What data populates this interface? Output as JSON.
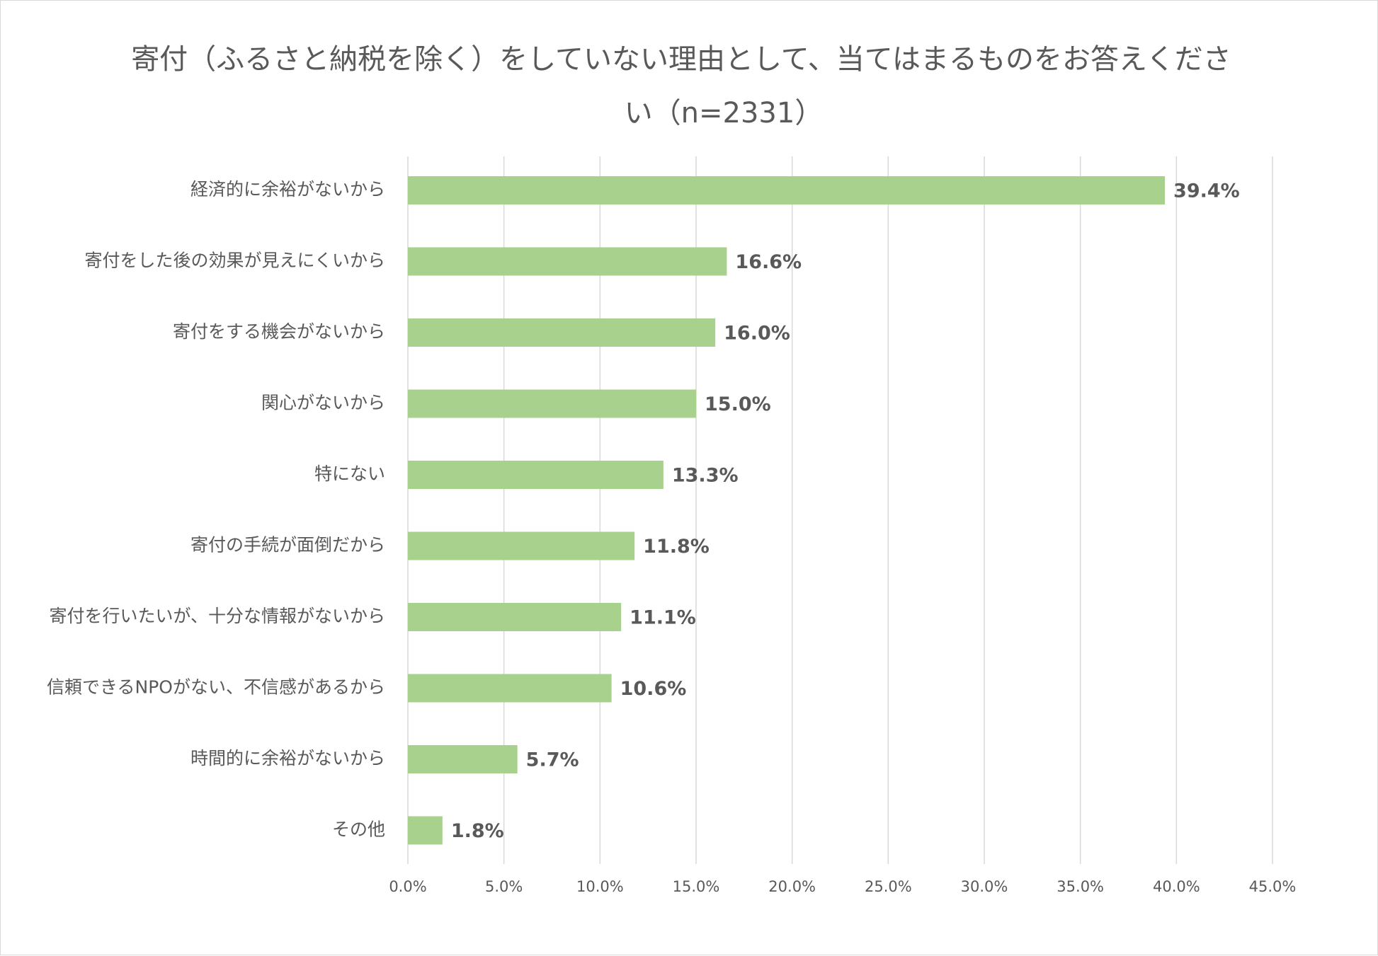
{
  "chart_data": {
    "type": "bar",
    "orientation": "horizontal",
    "title_line1": "寄付（ふるさと納税を除く）をしていない理由として、当てはまるものをお答えくださ",
    "title_line2": "い（n=2331）",
    "categories": [
      "経済的に余裕がないから",
      "寄付をした後の効果が見えにくいから",
      "寄付をする機会がないから",
      "関心がないから",
      "特にない",
      "寄付の手続が面倒だから",
      "寄付を行いたいが、十分な情報がないから",
      "信頼できるNPOがない、不信感があるから",
      "時間的に余裕がないから",
      "その他"
    ],
    "values": [
      39.4,
      16.6,
      16.0,
      15.0,
      13.3,
      11.8,
      11.1,
      10.6,
      5.7,
      1.8
    ],
    "data_labels": [
      "39.4%",
      "16.6%",
      "16.0%",
      "15.0%",
      "13.3%",
      "11.8%",
      "11.1%",
      "10.6%",
      "5.7%",
      "1.8%"
    ],
    "x_ticks": [
      0,
      5,
      10,
      15,
      20,
      25,
      30,
      35,
      40,
      45
    ],
    "x_tick_labels": [
      "0.0%",
      "5.0%",
      "10.0%",
      "15.0%",
      "20.0%",
      "25.0%",
      "30.0%",
      "35.0%",
      "40.0%",
      "45.0%"
    ],
    "xlim": [
      0,
      45
    ],
    "xlabel": "",
    "ylabel": "",
    "grid": true,
    "legend": "none",
    "bar_color": "#a9d18e",
    "grid_color": "#d9d9d9",
    "text_color": "#595959"
  }
}
